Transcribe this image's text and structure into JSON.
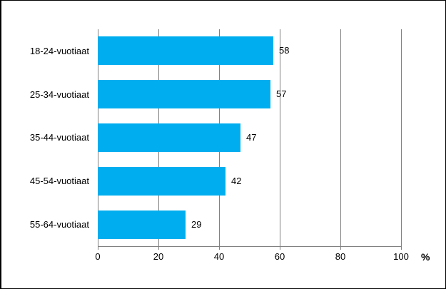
{
  "chart_data": {
    "type": "bar",
    "orientation": "horizontal",
    "title": "",
    "categories": [
      "18-24-vuotiaat",
      "25-34-vuotiaat",
      "35-44-vuotiaat",
      "45-54-vuotiaat",
      "55-64-vuotiaat"
    ],
    "values": [
      58,
      57,
      47,
      42,
      29
    ],
    "value_labels": [
      "58",
      "57",
      "47",
      "42",
      "29"
    ],
    "xlabel": "%",
    "xlim": [
      0,
      100
    ],
    "xticks": [
      0,
      20,
      40,
      60,
      80,
      100
    ],
    "xtick_labels": [
      "0",
      "20",
      "40",
      "60",
      "80",
      "100"
    ],
    "grid": true,
    "legend": false,
    "colors": {
      "bar": "#00AEEF",
      "gridline": "#808080",
      "axis": "#808080",
      "text": "#000000",
      "background": "#FFFFFF",
      "frame": "#000000"
    }
  }
}
